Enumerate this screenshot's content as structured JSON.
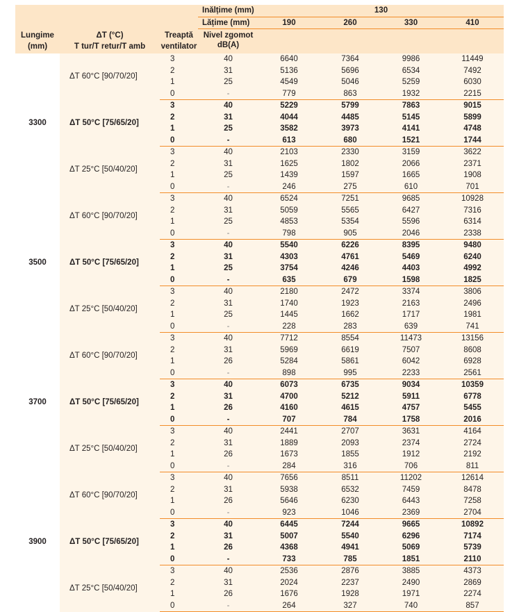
{
  "header": {
    "lungime": [
      "Lungime",
      "(mm)"
    ],
    "delta_t": [
      "ΔT (°C)",
      "T tur/T retur/T amb"
    ],
    "treapta": [
      "Treaptă",
      "ventilator"
    ],
    "inaltime_label": "Inălțime (mm)",
    "inaltime_value": "130",
    "latime_label": "Lățime (mm)",
    "latimi": [
      "190",
      "260",
      "330",
      "410"
    ],
    "nivel": [
      "Nivel zgomot",
      "dB(A)"
    ]
  },
  "colors": {
    "header_bg": "#fde6c8",
    "body_bg": "#fef5e8",
    "rule": "#f28c28"
  },
  "blocks": [
    {
      "length": "3300",
      "groups": [
        {
          "label": "ΔT 60°C [90/70/20]",
          "bold": false,
          "rows": [
            [
              "3",
              "40",
              "6640",
              "7364",
              "9986",
              "11449"
            ],
            [
              "2",
              "31",
              "5136",
              "5696",
              "6534",
              "7492"
            ],
            [
              "1",
              "25",
              "4549",
              "5046",
              "5259",
              "6030"
            ],
            [
              "0",
              "-",
              "779",
              "863",
              "1932",
              "2215"
            ]
          ]
        },
        {
          "label": "ΔT 50°C [75/65/20]",
          "bold": true,
          "rows": [
            [
              "3",
              "40",
              "5229",
              "5799",
              "7863",
              "9015"
            ],
            [
              "2",
              "31",
              "4044",
              "4485",
              "5145",
              "5899"
            ],
            [
              "1",
              "25",
              "3582",
              "3973",
              "4141",
              "4748"
            ],
            [
              "0",
              "-",
              "613",
              "680",
              "1521",
              "1744"
            ]
          ]
        },
        {
          "label": "ΔT 25°C [50/40/20]",
          "bold": false,
          "rows": [
            [
              "3",
              "40",
              "2103",
              "2330",
              "3159",
              "3622"
            ],
            [
              "2",
              "31",
              "1625",
              "1802",
              "2066",
              "2371"
            ],
            [
              "1",
              "25",
              "1439",
              "1597",
              "1665",
              "1908"
            ],
            [
              "0",
              "-",
              "246",
              "275",
              "610",
              "701"
            ]
          ]
        }
      ]
    },
    {
      "length": "3500",
      "groups": [
        {
          "label": "ΔT 60°C [90/70/20]",
          "bold": false,
          "rows": [
            [
              "3",
              "40",
              "6524",
              "7251",
              "9685",
              "10928"
            ],
            [
              "2",
              "31",
              "5059",
              "5565",
              "6427",
              "7316"
            ],
            [
              "1",
              "25",
              "4853",
              "5354",
              "5596",
              "6314"
            ],
            [
              "0",
              "-",
              "798",
              "905",
              "2046",
              "2338"
            ]
          ]
        },
        {
          "label": "ΔT 50°C [75/65/20]",
          "bold": true,
          "rows": [
            [
              "3",
              "40",
              "5540",
              "6226",
              "8395",
              "9480"
            ],
            [
              "2",
              "31",
              "4303",
              "4761",
              "5469",
              "6240"
            ],
            [
              "1",
              "25",
              "3754",
              "4246",
              "4403",
              "4992"
            ],
            [
              "0",
              "-",
              "635",
              "679",
              "1598",
              "1825"
            ]
          ]
        },
        {
          "label": "ΔT 25°C [50/40/20]",
          "bold": false,
          "rows": [
            [
              "3",
              "40",
              "2180",
              "2472",
              "3374",
              "3806"
            ],
            [
              "2",
              "31",
              "1740",
              "1923",
              "2163",
              "2496"
            ],
            [
              "1",
              "25",
              "1445",
              "1662",
              "1717",
              "1981"
            ],
            [
              "0",
              "-",
              "228",
              "283",
              "639",
              "741"
            ]
          ]
        }
      ]
    },
    {
      "length": "3700",
      "groups": [
        {
          "label": "ΔT 60°C [90/70/20]",
          "bold": false,
          "rows": [
            [
              "3",
              "40",
              "7712",
              "8554",
              "11473",
              "13156"
            ],
            [
              "2",
              "31",
              "5969",
              "6619",
              "7507",
              "8608"
            ],
            [
              "1",
              "26",
              "5284",
              "5861",
              "6042",
              "6928"
            ],
            [
              "0",
              "-",
              "898",
              "995",
              "2233",
              "2561"
            ]
          ]
        },
        {
          "label": "ΔT 50°C [75/65/20]",
          "bold": true,
          "rows": [
            [
              "3",
              "40",
              "6073",
              "6735",
              "9034",
              "10359"
            ],
            [
              "2",
              "31",
              "4700",
              "5212",
              "5911",
              "6778"
            ],
            [
              "1",
              "26",
              "4160",
              "4615",
              "4757",
              "5455"
            ],
            [
              "0",
              "-",
              "707",
              "784",
              "1758",
              "2016"
            ]
          ]
        },
        {
          "label": "ΔT 25°C [50/40/20]",
          "bold": false,
          "rows": [
            [
              "3",
              "40",
              "2441",
              "2707",
              "3631",
              "4164"
            ],
            [
              "2",
              "31",
              "1889",
              "2093",
              "2374",
              "2724"
            ],
            [
              "1",
              "26",
              "1673",
              "1855",
              "1912",
              "2192"
            ],
            [
              "0",
              "-",
              "284",
              "316",
              "706",
              "811"
            ]
          ]
        }
      ]
    },
    {
      "length": "3900",
      "groups": [
        {
          "label": "ΔT 60°C [90/70/20]",
          "bold": false,
          "rows": [
            [
              "3",
              "40",
              "7656",
              "8511",
              "11202",
              "12614"
            ],
            [
              "2",
              "31",
              "5938",
              "6532",
              "7459",
              "8478"
            ],
            [
              "1",
              "26",
              "5646",
              "6230",
              "6443",
              "7258"
            ],
            [
              "0",
              "-",
              "923",
              "1046",
              "2369",
              "2704"
            ]
          ]
        },
        {
          "label": "ΔT 50°C [75/65/20]",
          "bold": true,
          "rows": [
            [
              "3",
              "40",
              "6445",
              "7244",
              "9665",
              "10892"
            ],
            [
              "2",
              "31",
              "5007",
              "5540",
              "6296",
              "7174"
            ],
            [
              "1",
              "26",
              "4368",
              "4941",
              "5069",
              "5739"
            ],
            [
              "0",
              "-",
              "733",
              "785",
              "1851",
              "2110"
            ]
          ]
        },
        {
          "label": "ΔT 25°C [50/40/20]",
          "bold": false,
          "rows": [
            [
              "3",
              "40",
              "2536",
              "2876",
              "3885",
              "4373"
            ],
            [
              "2",
              "31",
              "2024",
              "2237",
              "2490",
              "2869"
            ],
            [
              "1",
              "26",
              "1676",
              "1928",
              "1971",
              "2274"
            ],
            [
              "0",
              "-",
              "264",
              "327",
              "740",
              "857"
            ]
          ]
        }
      ]
    }
  ]
}
